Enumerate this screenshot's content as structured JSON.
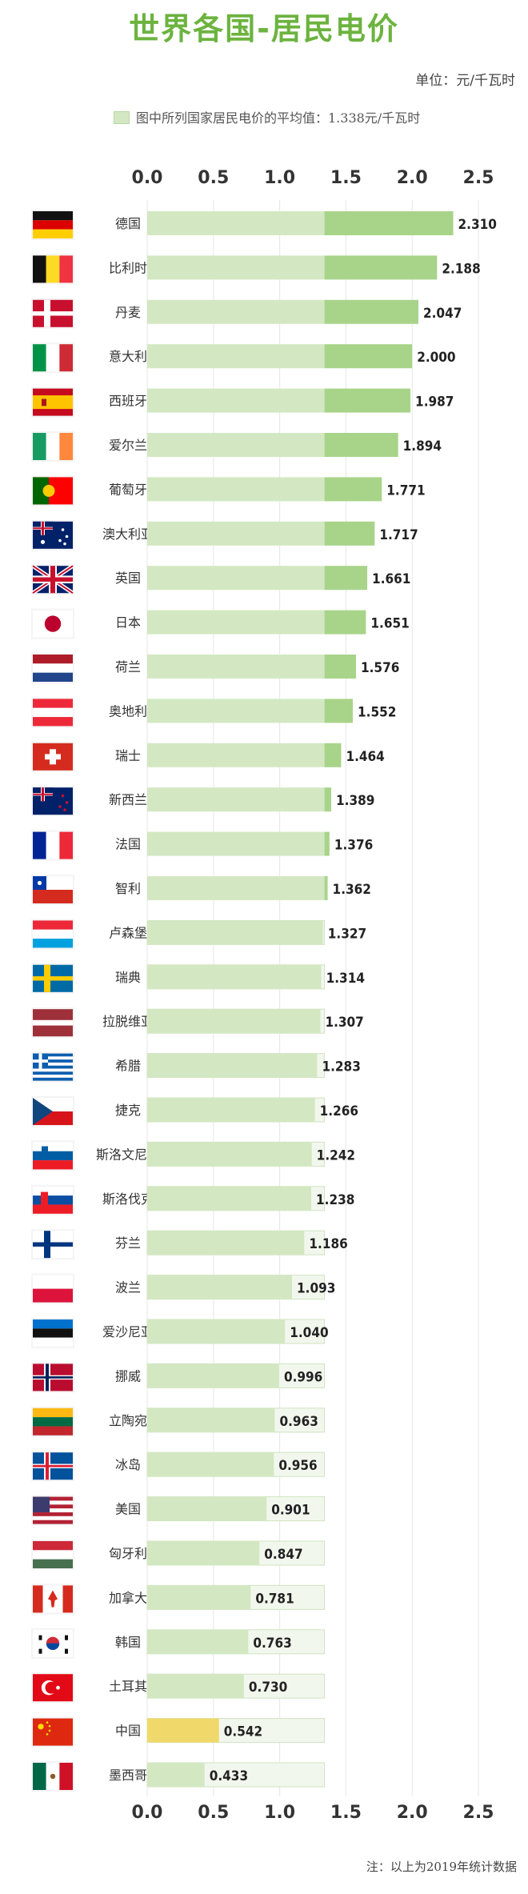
{
  "title": "世界各国-居民电价",
  "unit": "单位：元/千瓦时",
  "legend": "图中所列国家居民电价的平均值：1.338元/千瓦时",
  "footnote": "注：以上为2019年统计数据",
  "colors": {
    "title": "#6cb33f",
    "bar_below_avg": "#d3e8c2",
    "bar_above_avg": "#a8d48a",
    "bar_highlight": "#f0d86a",
    "avg_box_fill": "#f2f7ee",
    "avg_box_stroke": "#cfe3c0",
    "grid": "#e6e6e6"
  },
  "chart_data": {
    "type": "bar",
    "orientation": "horizontal",
    "x_ticks": [
      "0.0",
      "0.5",
      "1.0",
      "1.5",
      "2.0",
      "2.5"
    ],
    "xlim": [
      0,
      2.5
    ],
    "average": 1.338,
    "highlight": "中国",
    "categories": [
      "德国",
      "比利时",
      "丹麦",
      "意大利",
      "西班牙",
      "爱尔兰",
      "葡萄牙",
      "澳大利亚",
      "英国",
      "日本",
      "荷兰",
      "奥地利",
      "瑞士",
      "新西兰",
      "法国",
      "智利",
      "卢森堡",
      "瑞典",
      "拉脱维亚",
      "希腊",
      "捷克",
      "斯洛文尼亚",
      "斯洛伐克",
      "芬兰",
      "波兰",
      "爱沙尼亚",
      "挪威",
      "立陶宛",
      "冰岛",
      "美国",
      "匈牙利",
      "加拿大",
      "韩国",
      "土耳其",
      "中国",
      "墨西哥"
    ],
    "values": [
      2.31,
      2.188,
      2.047,
      2.0,
      1.987,
      1.894,
      1.771,
      1.717,
      1.661,
      1.651,
      1.576,
      1.552,
      1.464,
      1.389,
      1.376,
      1.362,
      1.327,
      1.314,
      1.307,
      1.283,
      1.266,
      1.242,
      1.238,
      1.186,
      1.093,
      1.04,
      0.996,
      0.963,
      0.956,
      0.901,
      0.847,
      0.781,
      0.763,
      0.73,
      0.542,
      0.433
    ],
    "value_labels": [
      "2.310",
      "2.188",
      "2.047",
      "2.000",
      "1.987",
      "1.894",
      "1.771",
      "1.717",
      "1.661",
      "1.651",
      "1.576",
      "1.552",
      "1.464",
      "1.389",
      "1.376",
      "1.362",
      "1.327",
      "1.314",
      "1.307",
      "1.283",
      "1.266",
      "1.242",
      "1.238",
      "1.186",
      "1.093",
      "1.040",
      "0.996",
      "0.963",
      "0.956",
      "0.901",
      "0.847",
      "0.781",
      "0.763",
      "0.730",
      "0.542",
      "0.433"
    ],
    "flags": [
      "flag-germany",
      "flag-belgium",
      "flag-denmark",
      "flag-italy",
      "flag-spain",
      "flag-ireland",
      "flag-portugal",
      "flag-australia",
      "flag-uk",
      "flag-japan",
      "flag-netherlands",
      "flag-austria",
      "flag-switzerland",
      "flag-new-zealand",
      "flag-france",
      "flag-chile",
      "flag-luxembourg",
      "flag-sweden",
      "flag-latvia",
      "flag-greece",
      "flag-czech",
      "flag-slovenia",
      "flag-slovakia",
      "flag-finland",
      "flag-poland",
      "flag-estonia",
      "flag-norway",
      "flag-lithuania",
      "flag-iceland",
      "flag-usa",
      "flag-hungary",
      "flag-canada",
      "flag-korea",
      "flag-turkey",
      "flag-china",
      "flag-mexico"
    ]
  }
}
